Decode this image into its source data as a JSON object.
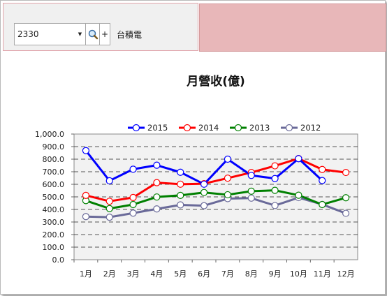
{
  "toolbar": {
    "stock_code": "2330",
    "stock_name": "台積電",
    "dropdown_glyph": "▼",
    "plus_glyph": "+"
  },
  "icons": {
    "search": "magnifier-icon",
    "dropdown": "chevron-down-icon",
    "add": "plus-icon"
  },
  "colors": {
    "toolbar_border": "#e1a4ab",
    "pink_panel": "#e8b7b9",
    "plot_bg": "#f2f2f2"
  },
  "chart_data": {
    "type": "line",
    "title": "月營收(億)",
    "categories": [
      "1月",
      "2月",
      "3月",
      "4月",
      "5月",
      "6月",
      "7月",
      "8月",
      "9月",
      "10月",
      "11月",
      "12月"
    ],
    "ylim": [
      0,
      1000
    ],
    "yticks": [
      "0.0",
      "100.0",
      "200.0",
      "300.0",
      "400.0",
      "500.0",
      "600.0",
      "700.0",
      "800.0",
      "900.0",
      "1,000.0"
    ],
    "grid": "horizontal dashed",
    "legend_position": "top",
    "series": [
      {
        "name": "2015",
        "color": "#0000ff",
        "values": [
          868,
          628,
          720,
          752,
          696,
          601,
          800,
          671,
          646,
          804,
          630,
          null
        ]
      },
      {
        "name": "2014",
        "color": "#ff0000",
        "values": [
          512,
          465,
          495,
          613,
          601,
          605,
          649,
          694,
          747,
          805,
          718,
          694
        ]
      },
      {
        "name": "2013",
        "color": "#008000",
        "values": [
          470,
          407,
          439,
          499,
          512,
          535,
          517,
          545,
          552,
          513,
          439,
          493
        ]
      },
      {
        "name": "2012",
        "color": "#6a6a99",
        "values": [
          343,
          338,
          371,
          404,
          436,
          430,
          486,
          490,
          431,
          494,
          440,
          369
        ]
      }
    ]
  }
}
